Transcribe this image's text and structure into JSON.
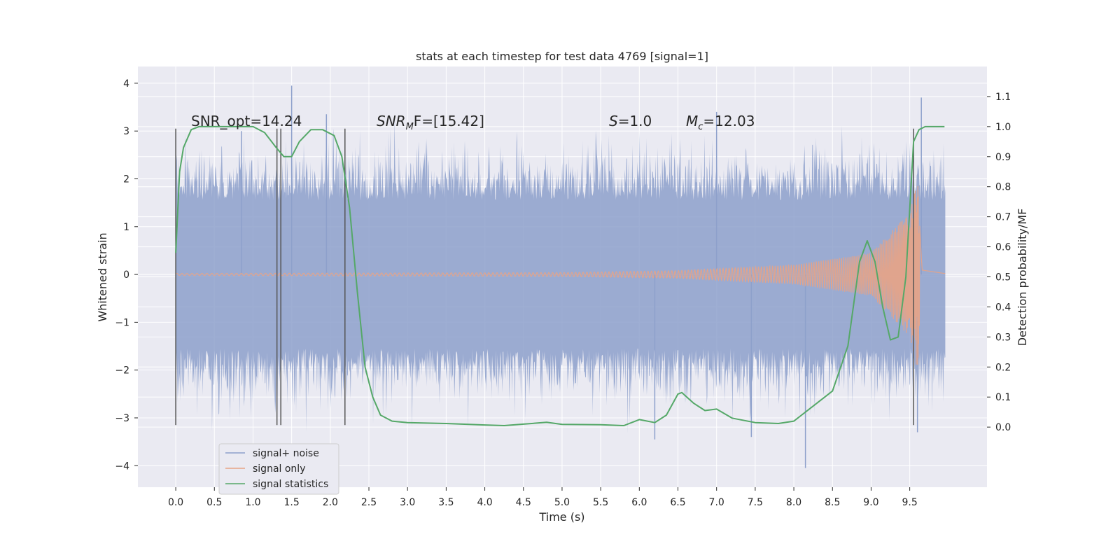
{
  "chart_data": {
    "type": "line",
    "title": "stats at each timestep for test data 4769 [signal=1]",
    "xlabel": "Time (s)",
    "ylabel_left": "Whitened strain",
    "ylabel_right": "Detection probability/MF",
    "xlim": [
      -0.49,
      10.5
    ],
    "ylim_left": [
      -4.45,
      4.35
    ],
    "ylim_right": [
      -0.2,
      1.2
    ],
    "x_ticks": [
      "0.0",
      "0.5",
      "1.0",
      "1.5",
      "2.0",
      "2.5",
      "3.0",
      "3.5",
      "4.0",
      "4.5",
      "5.0",
      "5.5",
      "6.0",
      "6.5",
      "7.0",
      "7.5",
      "8.0",
      "8.5",
      "9.0",
      "9.5"
    ],
    "y_left_ticks": [
      "4",
      "3",
      "2",
      "1",
      "0",
      "−1",
      "−2",
      "−3",
      "−4"
    ],
    "y_right_ticks": [
      "1.1",
      "1.0",
      "0.9",
      "0.8",
      "0.7",
      "0.6",
      "0.5",
      "0.4",
      "0.3",
      "0.2",
      "0.1",
      "0.0"
    ],
    "grid": true,
    "legend_position": "lower-left",
    "annotations": {
      "snr_opt": "SNR_opt=14.24",
      "snr_mf_label": "SNR",
      "snr_mf_sub": "M",
      "snr_mf_rest": "F=[15.42]",
      "s_label": "S",
      "s_rest": "=1.0",
      "mc_label": "M",
      "mc_sub": "c",
      "mc_rest": "=12.03"
    },
    "vertical_lines_x": [
      0.0,
      1.31,
      1.36,
      2.19,
      9.55
    ],
    "vertical_lines_range": [
      -3.15,
      3.05
    ],
    "series": [
      {
        "name": "signal+ noise",
        "color": "#8da0cb",
        "x_range": [
          0.0,
          9.96
        ],
        "envelope_1sigma": 1.2,
        "peak_high": 3.95,
        "peak_low": -4.05
      },
      {
        "name": "signal only",
        "color": "#e8a385",
        "x_range": [
          0.0,
          9.96
        ],
        "chirp_peak_time": 9.63,
        "amplitude_at": [
          [
            0.0,
            0.02
          ],
          [
            5.0,
            0.04
          ],
          [
            6.5,
            0.08
          ],
          [
            8.0,
            0.2
          ],
          [
            9.0,
            0.45
          ],
          [
            9.5,
            1.3
          ],
          [
            9.6,
            2.0
          ],
          [
            9.66,
            0.1
          ],
          [
            9.96,
            0.02
          ]
        ]
      },
      {
        "name": "signal statistics",
        "color": "#55a868",
        "x": [
          0.0,
          0.05,
          0.1,
          0.2,
          0.3,
          0.5,
          0.8,
          1.0,
          1.15,
          1.3,
          1.4,
          1.5,
          1.6,
          1.75,
          1.9,
          2.05,
          2.15,
          2.25,
          2.35,
          2.45,
          2.55,
          2.65,
          2.8,
          3.0,
          3.5,
          4.0,
          4.25,
          4.5,
          4.8,
          5.0,
          5.5,
          5.8,
          6.0,
          6.2,
          6.35,
          6.5,
          6.55,
          6.7,
          6.85,
          7.0,
          7.2,
          7.5,
          7.8,
          8.0,
          8.2,
          8.5,
          8.7,
          8.85,
          8.95,
          9.05,
          9.15,
          9.25,
          9.35,
          9.45,
          9.55,
          9.62,
          9.7,
          9.8,
          9.95
        ],
        "y": [
          0.58,
          0.85,
          0.93,
          0.99,
          1.0,
          1.0,
          1.0,
          1.0,
          0.98,
          0.93,
          0.9,
          0.9,
          0.95,
          0.99,
          0.99,
          0.97,
          0.9,
          0.73,
          0.45,
          0.2,
          0.1,
          0.04,
          0.02,
          0.015,
          0.012,
          0.007,
          0.005,
          0.01,
          0.016,
          0.009,
          0.008,
          0.005,
          0.025,
          0.015,
          0.04,
          0.11,
          0.115,
          0.08,
          0.055,
          0.06,
          0.03,
          0.015,
          0.012,
          0.02,
          0.06,
          0.12,
          0.27,
          0.55,
          0.62,
          0.55,
          0.4,
          0.29,
          0.3,
          0.5,
          0.95,
          0.99,
          1.0,
          1.0,
          1.0
        ]
      }
    ]
  }
}
